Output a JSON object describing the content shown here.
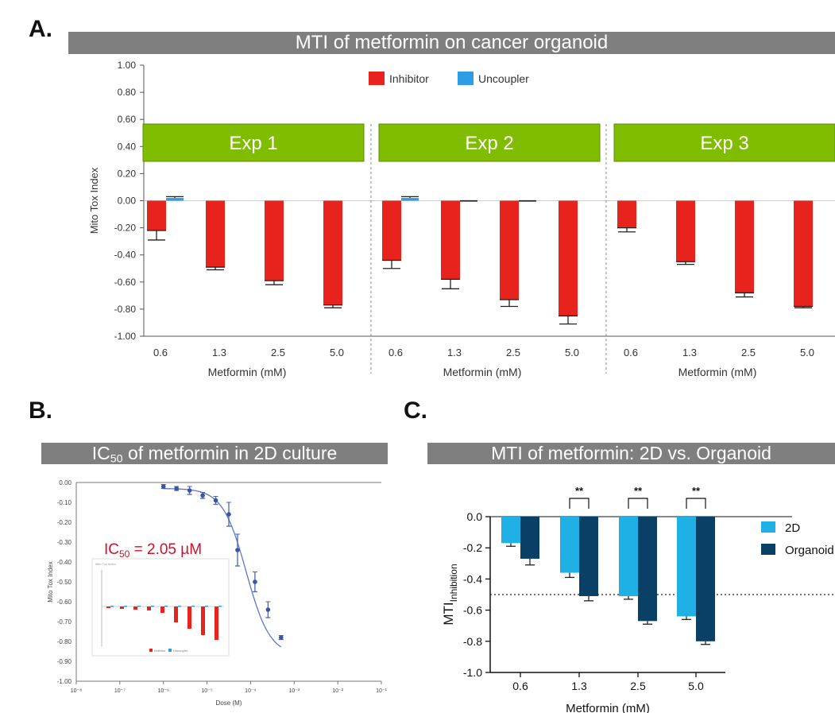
{
  "panels": {
    "a_letter": "A.",
    "b_letter": "B.",
    "c_letter": "C."
  },
  "chart_data": [
    {
      "panel": "A.",
      "type": "bar",
      "title": "MTI of metformin on cancer organoid",
      "ylabel": "Mito Tox Index",
      "xlabel": "Metformin (mM)",
      "ylim": [
        -1.0,
        1.0
      ],
      "yticks": [
        "1.00",
        "0.80",
        "0.60",
        "0.40",
        "0.20",
        "0.00",
        "-0.20",
        "-0.40",
        "-0.60",
        "-0.80",
        "-1.00"
      ],
      "legend": [
        {
          "name": "Inhibitor",
          "color": "#e8221c"
        },
        {
          "name": "Uncoupler",
          "color": "#2f9de6"
        }
      ],
      "legend_placement": "top-center",
      "groups": [
        {
          "label": "Exp 1",
          "categories": [
            "0.6",
            "1.3",
            "2.5",
            "5.0"
          ],
          "inhibitor": [
            -0.22,
            -0.49,
            -0.59,
            -0.77
          ],
          "inhibitor_err": [
            0.07,
            0.02,
            0.03,
            0.02
          ],
          "uncoupler": [
            0.02,
            null,
            null,
            null
          ],
          "uncoupler_err": [
            0.01,
            null,
            null,
            null
          ]
        },
        {
          "label": "Exp 2",
          "categories": [
            "0.6",
            "1.3",
            "2.5",
            "5.0"
          ],
          "inhibitor": [
            -0.44,
            -0.58,
            -0.73,
            -0.85
          ],
          "inhibitor_err": [
            0.06,
            0.07,
            0.05,
            0.06
          ],
          "uncoupler": [
            0.02,
            0.0,
            0.0,
            null
          ],
          "uncoupler_err": [
            0.01,
            0.0,
            0.0,
            null
          ]
        },
        {
          "label": "Exp 3",
          "categories": [
            "0.6",
            "1.3",
            "2.5",
            "5.0"
          ],
          "inhibitor": [
            -0.2,
            -0.45,
            -0.68,
            -0.78
          ],
          "inhibitor_err": [
            0.03,
            0.02,
            0.03,
            0.01
          ],
          "uncoupler": [
            null,
            null,
            null,
            null
          ],
          "uncoupler_err": [
            null,
            null,
            null,
            null
          ]
        }
      ]
    },
    {
      "panel": "B.",
      "type": "scatter",
      "title": "IC50 of metformin in 2D culture",
      "ylabel": "Mito Tox Index",
      "xlabel": "Dose (M)",
      "ylim": [
        -1.0,
        0.0
      ],
      "yticks": [
        "0.00",
        "-0.10",
        "-0.20",
        "-0.30",
        "-0.40",
        "-0.50",
        "-0.60",
        "-0.70",
        "-0.80",
        "-0.90",
        "-1.00"
      ],
      "xscale": "log",
      "xticks": [
        "10⁻⁸",
        "10⁻⁷",
        "10⁻⁶",
        "10⁻⁵",
        "10⁻⁴",
        "10⁻³",
        "10⁻²",
        "10⁻¹"
      ],
      "annotation": "IC50 = 2.05 µM",
      "points": [
        {
          "x": -6.0,
          "y": -0.02,
          "err": 0.01
        },
        {
          "x": -5.7,
          "y": -0.03,
          "err": 0.01
        },
        {
          "x": -5.4,
          "y": -0.04,
          "err": 0.02
        },
        {
          "x": -5.1,
          "y": -0.065,
          "err": 0.015
        },
        {
          "x": -4.8,
          "y": -0.09,
          "err": 0.02
        },
        {
          "x": -4.5,
          "y": -0.16,
          "err": 0.06
        },
        {
          "x": -4.3,
          "y": -0.34,
          "err": 0.08
        },
        {
          "x": -3.9,
          "y": -0.5,
          "err": 0.05
        },
        {
          "x": -3.6,
          "y": -0.64,
          "err": 0.04
        },
        {
          "x": -3.3,
          "y": -0.78,
          "err": 0.01
        }
      ],
      "inset": {
        "title": "Mito Tox Index",
        "legend": [
          {
            "name": "Inhibitor",
            "color": "#e8221c"
          },
          {
            "name": "Uncoupler",
            "color": "#2f9de6"
          }
        ],
        "bars": [
          -0.02,
          -0.03,
          -0.04,
          -0.05,
          -0.08,
          -0.2,
          -0.28,
          -0.36,
          -0.42
        ]
      }
    },
    {
      "panel": "C.",
      "type": "bar",
      "title": "MTI of metformin: 2D vs. Organoid",
      "ylabel": "MTI",
      "ylabel_sub": "Inhibition",
      "xlabel": "Metformin (mM)",
      "ylim": [
        -1.0,
        0.0
      ],
      "yticks": [
        "0.0",
        "-0.2",
        "-0.4",
        "-0.6",
        "-0.8",
        "-1.0"
      ],
      "categories": [
        "0.6",
        "1.3",
        "2.5",
        "5.0"
      ],
      "series": [
        {
          "name": "2D",
          "color": "#1fb0e6",
          "values": [
            -0.17,
            -0.36,
            -0.51,
            -0.64
          ],
          "err": [
            0.02,
            0.03,
            0.02,
            0.02
          ]
        },
        {
          "name": "Organoid",
          "color": "#0a3f66",
          "values": [
            -0.27,
            -0.51,
            -0.67,
            -0.8
          ],
          "err": [
            0.04,
            0.03,
            0.02,
            0.02
          ]
        }
      ],
      "significance": [
        "",
        "**",
        "**",
        "**"
      ],
      "reference_line": -0.5
    }
  ]
}
